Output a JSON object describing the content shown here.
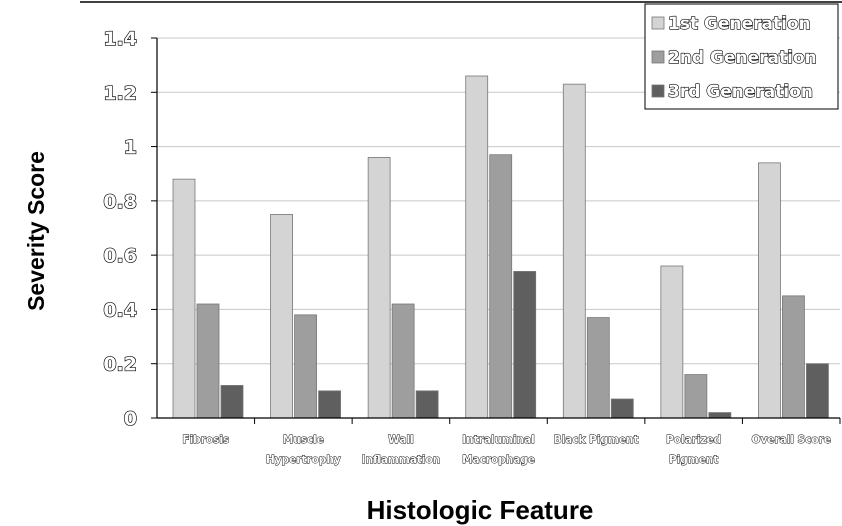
{
  "chart_data": {
    "type": "bar",
    "title": "",
    "xlabel": "Histologic Feature",
    "ylabel": "Severity Score",
    "ylim": [
      0,
      1.4
    ],
    "yticks": [
      "0",
      "0.2",
      "0.4",
      "0.6",
      "0.8",
      "1",
      "1.2",
      "1.4"
    ],
    "grid": true,
    "legend_position": "top-right",
    "categories": [
      [
        "Fibrosis"
      ],
      [
        "Muscle",
        "Hypertrophy"
      ],
      [
        "Wall",
        "Inflammation"
      ],
      [
        "Intraluminal",
        "Macrophage"
      ],
      [
        "Black Pigment"
      ],
      [
        "Polarized",
        "Pigment"
      ],
      [
        "Overall Score"
      ]
    ],
    "series": [
      {
        "name": "1st Generation",
        "color": "#d4d4d4",
        "values": [
          0.88,
          0.75,
          0.96,
          1.26,
          1.23,
          0.56,
          0.94
        ]
      },
      {
        "name": "2nd Generation",
        "color": "#9e9e9e",
        "values": [
          0.42,
          0.38,
          0.42,
          0.97,
          0.37,
          0.16,
          0.45
        ]
      },
      {
        "name": "3rd Generation",
        "color": "#5f5f5f",
        "values": [
          0.12,
          0.1,
          0.1,
          0.54,
          0.07,
          0.02,
          0.2
        ]
      }
    ]
  }
}
